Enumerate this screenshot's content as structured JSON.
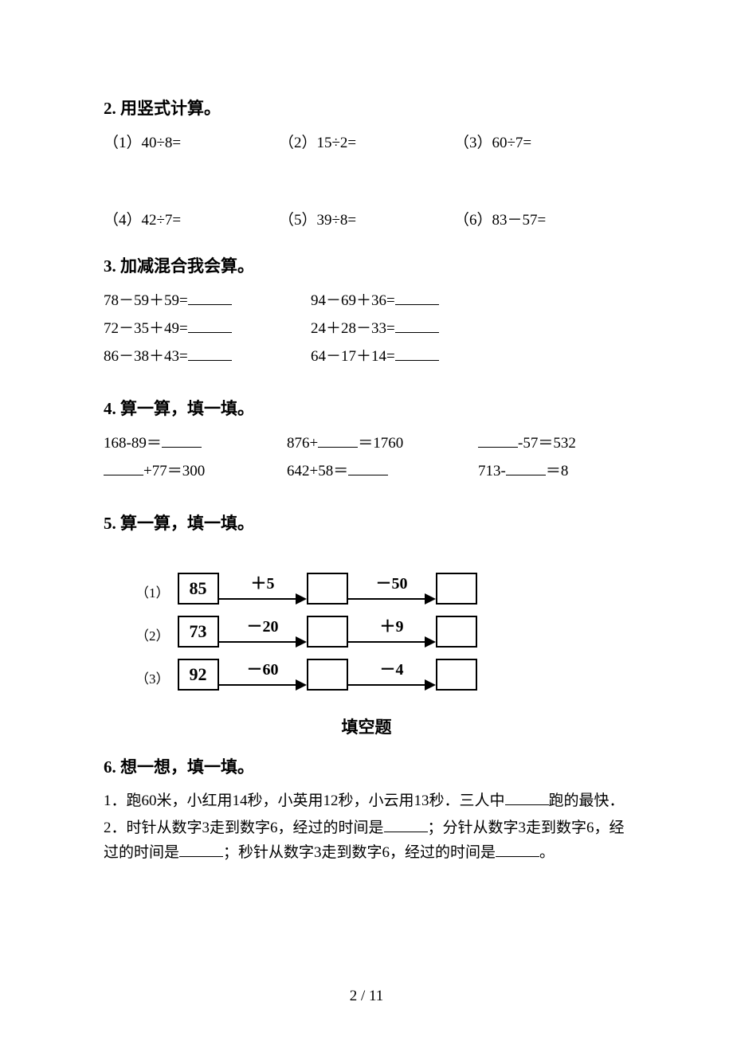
{
  "section2": {
    "title": "2.  用竖式计算。",
    "row1": [
      "（1）40÷8=",
      "（2）15÷2=",
      "（3）60÷7="
    ],
    "row2": [
      "（4）42÷7=",
      "（5）39÷8=",
      "（6）83－57="
    ]
  },
  "section3": {
    "title": "3.  加减混合我会算。",
    "rows": [
      {
        "a": "78－59＋59=",
        "b": "94－69＋36="
      },
      {
        "a": "72－35＋49=",
        "b": "24＋28－33="
      },
      {
        "a": "86－38＋43=",
        "b": "64－17＋14="
      }
    ]
  },
  "section4": {
    "title": "4.  算一算，填一填。",
    "row1": {
      "c1a": "168-89＝",
      "c2a": "876+",
      "c2b": "＝1760",
      "c3b": "-57＝532"
    },
    "row2": {
      "c1b": "+77＝300",
      "c2a": "642+58＝",
      "c3a": "713-",
      "c3b": "＝8"
    }
  },
  "section5": {
    "title": "5.  算一算，填一填。",
    "diagrams": [
      {
        "idx": "（1）",
        "start": "85",
        "op1": "＋5",
        "op2": "－50"
      },
      {
        "idx": "（2）",
        "start": "73",
        "op1": "－20",
        "op2": "＋9"
      },
      {
        "idx": "（3）",
        "start": "92",
        "op1": "－60",
        "op2": "－4"
      }
    ]
  },
  "fill_section_title": "填空题",
  "section6": {
    "title": "6.  想一想，填一填。",
    "q1a": "1．跑60米，小红用14秒，小英用12秒，小云用13秒．三人中",
    "q1b": "跑的最快．",
    "q2a": "2．时针从数字3走到数字6，经过的时间是",
    "q2b": "；分针从数字3走到数字6，经过的时间是",
    "q2c": "；秒针从数字3走到数字6，经过的时间是",
    "q2d": "。"
  },
  "page_number": "2 / 11"
}
